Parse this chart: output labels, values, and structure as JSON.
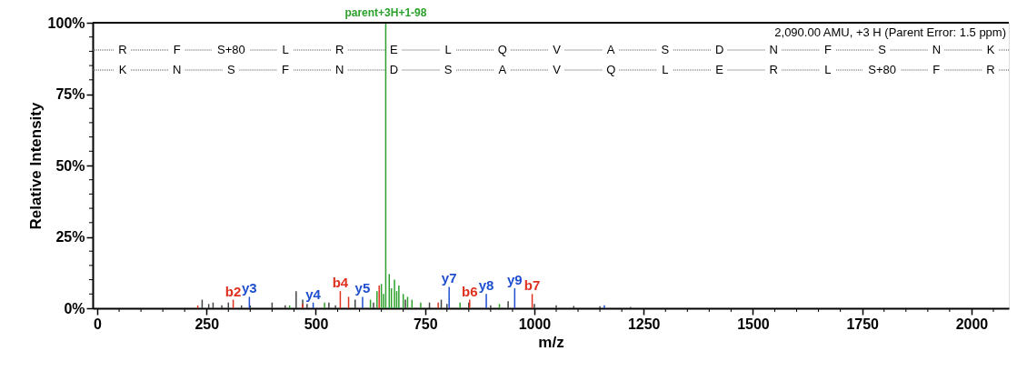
{
  "chart_data": {
    "type": "bar",
    "xlabel": "m/z",
    "ylabel": "Relative Intensity",
    "xlim": [
      0,
      2075
    ],
    "ylim": [
      0,
      100
    ],
    "xticks": [
      0,
      {
        "value": 50,
        "label": null
      },
      {
        "value": 100,
        "label": null
      },
      {
        "value": 150,
        "label": null
      },
      {
        "value": 200,
        "label": null
      },
      250,
      {
        "value": 300,
        "label": null
      },
      {
        "value": 350,
        "label": null
      },
      {
        "value": 400,
        "label": null
      },
      {
        "value": 450,
        "label": null
      },
      500,
      {
        "value": 550,
        "label": null
      },
      {
        "value": 600,
        "label": null
      },
      {
        "value": 650,
        "label": null
      },
      {
        "value": 700,
        "label": null
      },
      750,
      {
        "value": 800,
        "label": null
      },
      {
        "value": 850,
        "label": null
      },
      {
        "value": 900,
        "label": null
      },
      {
        "value": 950,
        "label": null
      },
      1000,
      {
        "value": 1050,
        "label": null
      },
      {
        "value": 1100,
        "label": null
      },
      {
        "value": 1150,
        "label": null
      },
      {
        "value": 1200,
        "label": null
      },
      1250,
      {
        "value": 1300,
        "label": null
      },
      {
        "value": 1350,
        "label": null
      },
      {
        "value": 1400,
        "label": null
      },
      {
        "value": 1450,
        "label": null
      },
      1500,
      {
        "value": 1550,
        "label": null
      },
      {
        "value": 1600,
        "label": null
      },
      {
        "value": 1650,
        "label": null
      },
      {
        "value": 1700,
        "label": null
      },
      1750,
      {
        "value": 1800,
        "label": null
      },
      {
        "value": 1850,
        "label": null
      },
      {
        "value": 1900,
        "label": null
      },
      {
        "value": 1950,
        "label": null
      },
      2000,
      {
        "value": 2050,
        "label": null
      }
    ],
    "yticks": [
      {
        "value": 0,
        "label": "0%"
      },
      {
        "value": 5,
        "label": null
      },
      {
        "value": 10,
        "label": null
      },
      {
        "value": 15,
        "label": null
      },
      {
        "value": 20,
        "label": null
      },
      {
        "value": 25,
        "label": "25%"
      },
      {
        "value": 30,
        "label": null
      },
      {
        "value": 35,
        "label": null
      },
      {
        "value": 40,
        "label": null
      },
      {
        "value": 45,
        "label": null
      },
      {
        "value": 50,
        "label": "50%"
      },
      {
        "value": 55,
        "label": null
      },
      {
        "value": 60,
        "label": null
      },
      {
        "value": 65,
        "label": null
      },
      {
        "value": 70,
        "label": null
      },
      {
        "value": 75,
        "label": "75%"
      },
      {
        "value": 80,
        "label": null
      },
      {
        "value": 85,
        "label": null
      },
      {
        "value": 90,
        "label": null
      },
      {
        "value": 95,
        "label": null
      },
      {
        "value": 100,
        "label": "100%"
      }
    ],
    "grid": false,
    "series": [
      {
        "color": "#444444",
        "x": [
          240,
          255,
          265,
          285,
          300,
          330,
          350,
          400,
          430,
          455,
          470,
          480,
          530,
          545,
          590,
          632,
          705,
          760,
          787,
          800,
          850,
          900,
          940,
          1000,
          1050,
          1090,
          1150,
          1220
        ],
        "values": [
          3,
          1.5,
          2,
          1,
          2,
          1,
          1,
          2,
          1,
          6,
          3,
          1.5,
          2,
          1,
          3,
          2,
          3,
          2,
          3,
          1.5,
          2,
          1,
          2.5,
          1.5,
          1,
          0.8,
          0.7,
          0.5
        ]
      },
      {
        "color": "#2ca02c",
        "x": [
          440,
          520,
          625,
          640,
          650,
          655,
          660,
          668,
          673,
          680,
          685,
          690,
          700,
          710,
          720,
          740,
          830,
          920
        ],
        "values": [
          1,
          2,
          3,
          6,
          8.5,
          5,
          100,
          12,
          7,
          10,
          6,
          8,
          5,
          4,
          3,
          2,
          2,
          1.5
        ]
      },
      {
        "color": "#e0301e",
        "x": [
          230,
          311,
          470,
          556,
          575,
          645,
          780,
          852,
          995
        ],
        "values": [
          1,
          3,
          1.5,
          6,
          4,
          8,
          2,
          3,
          5
        ]
      },
      {
        "color": "#1f4fd0",
        "x": [
          348,
          494,
          607,
          805,
          890,
          955,
          1160
        ],
        "values": [
          4,
          2,
          4,
          7.5,
          5,
          7,
          1
        ]
      }
    ],
    "annotations": [
      "2,090.00 AMU, +3 H (Parent Error: 1.5 ppm)",
      "R F S+80 L R E L Q V A S D N F S N K",
      "K N S F N D S A V Q L E R L S+80 F R",
      {
        "text": "parent+3H+1-98",
        "x": 660,
        "y": 100
      },
      {
        "text": "b2",
        "x": 311,
        "y": 3
      },
      {
        "text": "y3",
        "x": 348,
        "y": 4
      },
      {
        "text": "y4",
        "x": 494,
        "y": 2
      },
      {
        "text": "b4",
        "x": 556,
        "y": 6
      },
      {
        "text": "y5",
        "x": 607,
        "y": 4
      },
      {
        "text": "y7",
        "x": 805,
        "y": 7.5
      },
      {
        "text": "b6",
        "x": 852,
        "y": 3
      },
      {
        "text": "y8",
        "x": 890,
        "y": 5
      },
      {
        "text": "y9",
        "x": 955,
        "y": 7
      },
      {
        "text": "b7",
        "x": 995,
        "y": 5
      }
    ]
  }
}
